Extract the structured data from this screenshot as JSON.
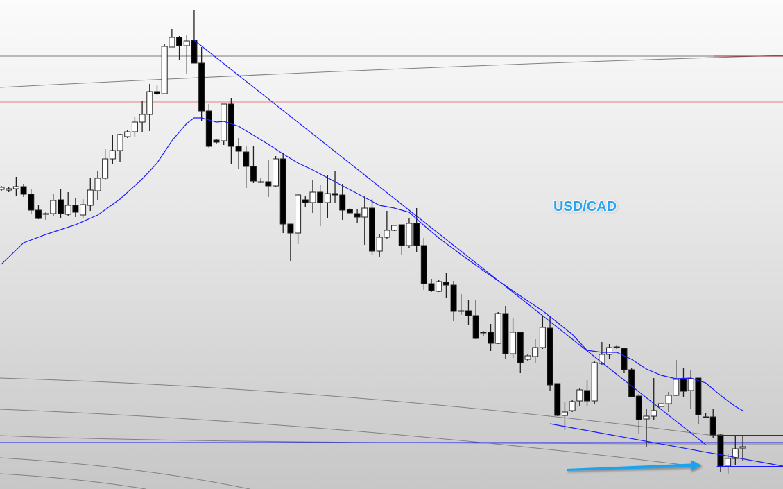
{
  "chart_data": {
    "type": "candlestick",
    "title": "USD/CAD",
    "xlabel": "",
    "ylabel": "",
    "ylim": [
      0,
      70.5
    ],
    "grid": false,
    "colors": {
      "up_body": "#ffffff",
      "down_body": "#000000",
      "wick": "#222222",
      "moving_average": "#1a1aff",
      "trendline": "#1a1aff",
      "level_gray": "#7a7a7a",
      "level_red": "#e06060",
      "arrow": "#1ea3ee"
    },
    "ohlc": [
      [
        43.2,
        43.7,
        42.9,
        43.5
      ],
      [
        43.1,
        43.5,
        42.8,
        43.3
      ],
      [
        43.3,
        45.0,
        42.2,
        43.6
      ],
      [
        43.6,
        44.0,
        42.1,
        42.5
      ],
      [
        42.5,
        43.2,
        39.7,
        40.2
      ],
      [
        40.2,
        41.0,
        38.9,
        39.0
      ],
      [
        39.7,
        39.9,
        38.8,
        39.6
      ],
      [
        39.7,
        42.5,
        39.4,
        41.6
      ],
      [
        41.7,
        43.3,
        39.0,
        39.7
      ],
      [
        39.6,
        42.8,
        39.4,
        40.9
      ],
      [
        40.9,
        42.0,
        39.2,
        39.9
      ],
      [
        39.5,
        41.8,
        39.0,
        41.0
      ],
      [
        40.9,
        44.8,
        40.1,
        43.1
      ],
      [
        43.0,
        45.9,
        41.7,
        44.8
      ],
      [
        44.8,
        49.0,
        44.5,
        47.6
      ],
      [
        47.6,
        51.0,
        46.9,
        48.8
      ],
      [
        48.8,
        51.2,
        47.2,
        51.1
      ],
      [
        50.8,
        51.8,
        50.6,
        51.5
      ],
      [
        51.5,
        53.6,
        50.7,
        52.9
      ],
      [
        52.9,
        55.9,
        51.5,
        54.0
      ],
      [
        54.0,
        58.4,
        51.6,
        57.3
      ],
      [
        57.3,
        58.2,
        56.8,
        57.0
      ],
      [
        57.0,
        64.2,
        57.0,
        63.8
      ],
      [
        63.7,
        66.3,
        63.7,
        65.1
      ],
      [
        65.1,
        65.3,
        61.8,
        63.9
      ],
      [
        63.9,
        65.4,
        59.9,
        64.6
      ],
      [
        64.7,
        69.0,
        61.4,
        61.4
      ],
      [
        61.4,
        63.7,
        53.0,
        54.5
      ],
      [
        54.5,
        55.5,
        49.2,
        49.4
      ],
      [
        50.3,
        50.5,
        49.8,
        50.0
      ],
      [
        50.2,
        55.5,
        49.6,
        55.5
      ],
      [
        55.5,
        56.4,
        46.8,
        49.4
      ],
      [
        49.4,
        50.6,
        46.2,
        48.7
      ],
      [
        48.6,
        49.4,
        43.4,
        46.5
      ],
      [
        46.5,
        49.5,
        44.1,
        44.4
      ],
      [
        44.3,
        44.9,
        44.1,
        44.2
      ],
      [
        44.3,
        47.4,
        42.1,
        43.7
      ],
      [
        43.7,
        48.0,
        43.5,
        47.6
      ],
      [
        47.6,
        48.5,
        36.9,
        38.2
      ],
      [
        38.2,
        38.2,
        32.9,
        36.9
      ],
      [
        36.9,
        42.5,
        35.3,
        42.4
      ],
      [
        41.7,
        42.2,
        40.7,
        41.3
      ],
      [
        41.3,
        44.6,
        39.8,
        42.8
      ],
      [
        42.8,
        43.9,
        37.9,
        41.3
      ],
      [
        41.3,
        45.3,
        39.1,
        42.6
      ],
      [
        42.6,
        45.8,
        41.2,
        42.4
      ],
      [
        42.4,
        44.0,
        38.8,
        40.2
      ],
      [
        40.3,
        40.5,
        39.6,
        39.8
      ],
      [
        39.7,
        40.3,
        38.3,
        39.2
      ],
      [
        39.2,
        42.2,
        35.2,
        40.5
      ],
      [
        40.5,
        41.8,
        33.8,
        34.3
      ],
      [
        34.3,
        36.7,
        33.4,
        36.3
      ],
      [
        36.3,
        40.1,
        36.1,
        37.3
      ],
      [
        37.3,
        38.0,
        37.2,
        38.0
      ],
      [
        38.1,
        38.1,
        33.7,
        35.1
      ],
      [
        35.1,
        39.1,
        34.8,
        38.3
      ],
      [
        38.3,
        40.5,
        34.2,
        35.1
      ],
      [
        35.1,
        36.2,
        28.7,
        29.6
      ],
      [
        29.6,
        30.3,
        28.4,
        28.6
      ],
      [
        28.5,
        30.1,
        28.4,
        29.9
      ],
      [
        29.8,
        31.2,
        27.5,
        29.4
      ],
      [
        29.4,
        30.0,
        24.2,
        25.6
      ],
      [
        25.7,
        28.1,
        25.1,
        25.6
      ],
      [
        25.7,
        27.3,
        23.7,
        25.0
      ],
      [
        25.0,
        27.2,
        21.6,
        21.7
      ],
      [
        22.6,
        22.8,
        22.1,
        22.6
      ],
      [
        22.6,
        23.8,
        19.9,
        21.0
      ],
      [
        21.0,
        25.5,
        20.9,
        25.3
      ],
      [
        25.3,
        26.4,
        18.8,
        19.5
      ],
      [
        19.5,
        24.7,
        18.9,
        22.6
      ],
      [
        22.6,
        22.7,
        16.7,
        18.2
      ],
      [
        18.7,
        19.5,
        18.4,
        19.2
      ],
      [
        19.1,
        21.6,
        18.2,
        20.4
      ],
      [
        20.4,
        24.9,
        20.2,
        23.3
      ],
      [
        23.2,
        25.0,
        14.2,
        15.0
      ],
      [
        15.2,
        15.2,
        10.5,
        10.6
      ],
      [
        10.6,
        12.5,
        8.5,
        11.1
      ],
      [
        11.3,
        12.9,
        11.1,
        12.6
      ],
      [
        12.7,
        14.5,
        11.9,
        14.3
      ],
      [
        14.2,
        15.7,
        11.9,
        12.7
      ],
      [
        12.7,
        18.5,
        12.3,
        18.2
      ],
      [
        18.1,
        21.2,
        17.9,
        19.4
      ],
      [
        19.4,
        20.9,
        18.7,
        20.4
      ],
      [
        20.5,
        20.7,
        20.2,
        20.4
      ],
      [
        20.3,
        20.4,
        16.7,
        17.2
      ],
      [
        17.2,
        17.5,
        13.2,
        13.3
      ],
      [
        13.4,
        13.7,
        8.0,
        10.0
      ],
      [
        10.1,
        11.5,
        6.1,
        10.5
      ],
      [
        10.5,
        16.0,
        9.9,
        11.3
      ],
      [
        11.9,
        12.3,
        11.9,
        12.3
      ],
      [
        12.3,
        14.0,
        11.1,
        13.5
      ],
      [
        13.5,
        18.6,
        13.4,
        15.8
      ],
      [
        15.8,
        17.5,
        13.2,
        14.1
      ],
      [
        14.2,
        17.2,
        11.6,
        15.9
      ],
      [
        16.0,
        16.0,
        9.3,
        10.7
      ],
      [
        10.4,
        11.0,
        10.3,
        10.4
      ],
      [
        10.4,
        11.5,
        7.4,
        7.8
      ],
      [
        7.8,
        7.9,
        2.5,
        3.3
      ],
      [
        3.3,
        5.0,
        2.2,
        4.4
      ],
      [
        4.4,
        7.6,
        3.5,
        5.8
      ],
      [
        5.9,
        7.6,
        4.1,
        6.1
      ]
    ],
    "moving_average": [
      [
        1,
        32.4
      ],
      [
        4,
        35.5
      ],
      [
        7,
        36.7
      ],
      [
        11,
        38.1
      ],
      [
        14,
        39.5
      ],
      [
        17,
        41.8
      ],
      [
        20,
        44.7
      ],
      [
        22,
        47.0
      ],
      [
        24,
        50.2
      ],
      [
        26,
        52.7
      ],
      [
        27,
        53.5
      ],
      [
        28,
        53.5
      ],
      [
        30,
        52.9
      ],
      [
        31,
        53.0
      ],
      [
        33,
        52.3
      ],
      [
        37,
        49.7
      ],
      [
        39,
        48.3
      ],
      [
        41,
        47.0
      ],
      [
        43,
        46.0
      ],
      [
        46,
        44.3
      ],
      [
        49,
        42.6
      ],
      [
        52,
        40.9
      ],
      [
        54,
        40.5
      ],
      [
        56,
        39.9
      ],
      [
        58,
        38.0
      ],
      [
        60,
        36.2
      ],
      [
        63,
        33.8
      ],
      [
        66,
        31.5
      ],
      [
        69,
        29.3
      ],
      [
        72,
        27.1
      ],
      [
        74,
        25.7
      ],
      [
        76,
        24.0
      ],
      [
        78,
        22.3
      ],
      [
        80,
        20.0
      ],
      [
        82,
        19.7
      ],
      [
        84,
        19.7
      ],
      [
        86,
        18.7
      ],
      [
        88,
        17.3
      ],
      [
        90,
        16.4
      ],
      [
        92,
        15.9
      ],
      [
        94,
        16.0
      ],
      [
        96,
        15.3
      ],
      [
        98,
        13.5
      ],
      [
        100,
        11.9
      ],
      [
        101,
        11.3
      ]
    ],
    "trendlines": [
      {
        "from": [
          27,
          64.7
        ],
        "to": [
          96,
          6.4
        ]
      },
      {
        "from": [
          75,
          9.4
        ],
        "to": [
          106.4,
          3.3
        ]
      }
    ],
    "horizontal_levels": [
      {
        "value": 62.4,
        "color": "#7a7a7a"
      },
      {
        "value": 55.8,
        "color": "#e58080"
      },
      {
        "value": 6.7,
        "color": "#1a1aff"
      }
    ],
    "range_box": {
      "top": 7.7,
      "bottom": 3.2,
      "from": 97.5
    },
    "arrow": {
      "from": [
        77.3,
        2.8
      ],
      "to": [
        95.3,
        3.4
      ]
    }
  }
}
